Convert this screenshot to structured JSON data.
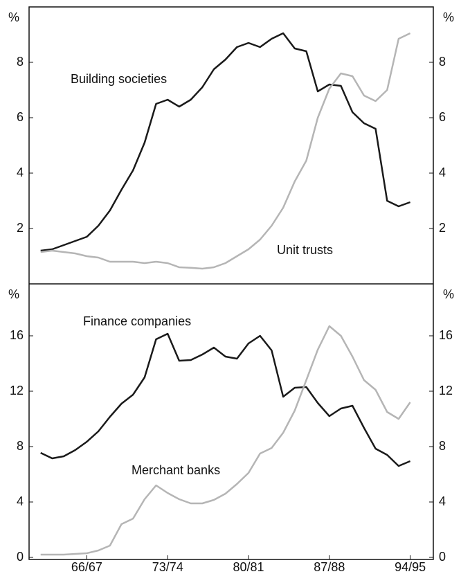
{
  "chart_data": [
    {
      "type": "line",
      "ylabel": "%",
      "x": [
        1962,
        1963,
        1964,
        1965,
        1966,
        1967,
        1968,
        1969,
        1970,
        1971,
        1972,
        1973,
        1974,
        1975,
        1976,
        1977,
        1978,
        1979,
        1980,
        1981,
        1982,
        1983,
        1984,
        1985,
        1986,
        1987,
        1988,
        1989,
        1990,
        1991,
        1992,
        1993,
        1994
      ],
      "series": [
        {
          "name": "Building societies",
          "color": "#1a1a1a",
          "values": [
            1.2,
            1.25,
            1.4,
            1.55,
            1.7,
            2.1,
            2.65,
            3.4,
            4.1,
            5.1,
            6.5,
            6.65,
            6.4,
            6.65,
            7.1,
            7.75,
            8.1,
            8.55,
            8.7,
            8.55,
            8.85,
            9.05,
            8.5,
            8.4,
            6.95,
            7.2,
            7.15,
            6.2,
            5.8,
            5.6,
            3.0,
            2.8,
            2.95
          ]
        },
        {
          "name": "Unit trusts",
          "color": "#b5b5b5",
          "values": [
            1.15,
            1.2,
            1.15,
            1.1,
            1.0,
            0.95,
            0.8,
            0.8,
            0.8,
            0.75,
            0.8,
            0.75,
            0.6,
            0.58,
            0.55,
            0.6,
            0.75,
            1.0,
            1.25,
            1.6,
            2.1,
            2.75,
            3.7,
            4.45,
            6.0,
            7.05,
            7.6,
            7.5,
            6.8,
            6.6,
            7.0,
            8.85,
            9.05
          ]
        }
      ],
      "xlim": [
        1961,
        1996
      ],
      "ylim": [
        0,
        10
      ],
      "yticks": [
        2,
        4,
        6,
        8
      ]
    },
    {
      "type": "line",
      "ylabel": "%",
      "x": [
        1962,
        1963,
        1964,
        1965,
        1966,
        1967,
        1968,
        1969,
        1970,
        1971,
        1972,
        1973,
        1974,
        1975,
        1976,
        1977,
        1978,
        1979,
        1980,
        1981,
        1982,
        1983,
        1984,
        1985,
        1986,
        1987,
        1988,
        1989,
        1990,
        1991,
        1992,
        1993,
        1994
      ],
      "series": [
        {
          "name": "Finance companies",
          "color": "#1a1a1a",
          "values": [
            7.55,
            7.15,
            7.3,
            7.75,
            8.35,
            9.1,
            10.15,
            11.1,
            11.75,
            13.0,
            15.75,
            16.15,
            14.2,
            14.25,
            14.65,
            15.15,
            14.5,
            14.35,
            15.45,
            16.0,
            14.95,
            11.6,
            12.25,
            12.3,
            11.15,
            10.2,
            10.75,
            10.95,
            9.35,
            7.85,
            7.4,
            6.6,
            6.95
          ]
        },
        {
          "name": "Merchant banks",
          "color": "#b5b5b5",
          "values": [
            0.2,
            0.2,
            0.2,
            0.25,
            0.3,
            0.5,
            0.85,
            2.4,
            2.8,
            4.2,
            5.2,
            4.65,
            4.2,
            3.9,
            3.9,
            4.15,
            4.6,
            5.3,
            6.1,
            7.5,
            7.9,
            9.0,
            10.6,
            12.8,
            15.0,
            16.7,
            16.0,
            14.5,
            12.8,
            12.1,
            10.5,
            10.0,
            11.2
          ]
        }
      ],
      "xlim": [
        1961,
        1996
      ],
      "ylim": [
        -0.15,
        19.75
      ],
      "yticks": [
        0,
        4,
        8,
        12,
        16
      ],
      "xticks": [
        {
          "value": 1966,
          "label": "66/67"
        },
        {
          "value": 1973,
          "label": "73/74"
        },
        {
          "value": 1980,
          "label": "80/81"
        },
        {
          "value": 1987,
          "label": "87/88"
        },
        {
          "value": 1994,
          "label": "94/95"
        }
      ]
    }
  ]
}
